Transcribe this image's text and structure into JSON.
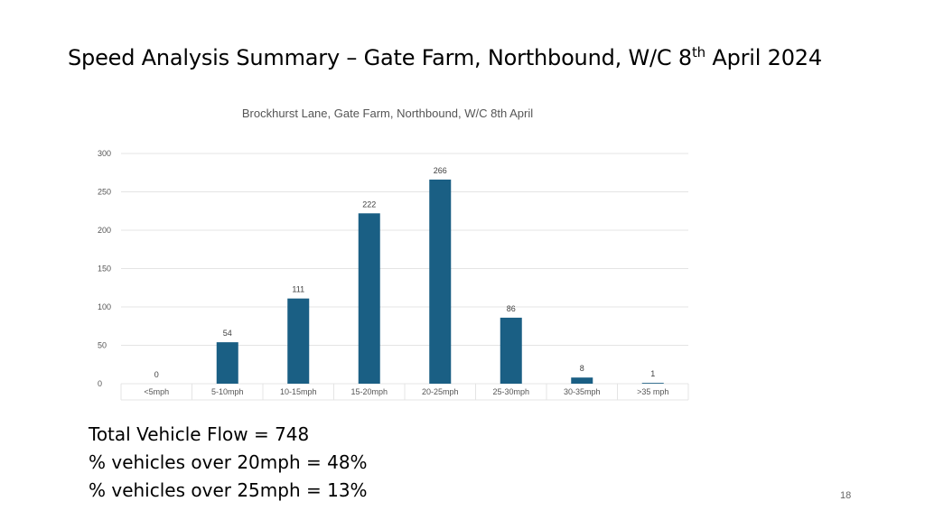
{
  "slide": {
    "title_main": "Speed Analysis Summary – Gate Farm, Northbound, W/C 8",
    "title_sup": "th",
    "title_end": " April 2024",
    "stats": [
      "Total Vehicle Flow = 748",
      "% vehicles over 20mph = 48%",
      "% vehicles over 25mph = 13%"
    ],
    "page_number": "18"
  },
  "chart_data": {
    "type": "bar",
    "title": "Brockhurst Lane, Gate Farm, Northbound, W/C 8th April",
    "categories": [
      "<5mph",
      "5-10mph",
      "10-15mph",
      "15-20mph",
      "20-25mph",
      "25-30mph",
      "30-35mph",
      ">35 mph"
    ],
    "values": [
      0,
      54,
      111,
      222,
      266,
      86,
      8,
      1
    ],
    "data_labels": [
      "0",
      "54",
      "111",
      "222",
      "266",
      "86",
      "8",
      "1"
    ],
    "y_ticks": [
      0,
      50,
      100,
      150,
      200,
      250,
      300
    ],
    "ylim": [
      0,
      300
    ],
    "xlabel": "",
    "ylabel": "",
    "grid": true,
    "legend": "none",
    "bar_color": "#1a5f84",
    "grid_color": "#e4e4e4"
  }
}
